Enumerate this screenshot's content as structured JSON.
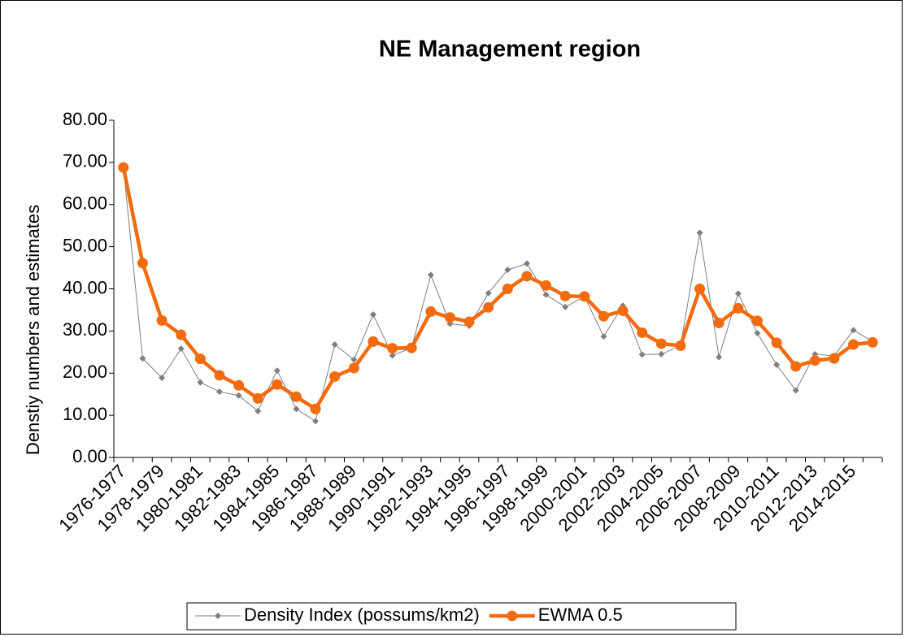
{
  "chart_data": {
    "type": "line",
    "title": "NE Management region",
    "y_label": "Denstiy numbers and estimates",
    "categories": [
      "1976-1977",
      null,
      "1978-1979",
      null,
      "1980-1981",
      null,
      "1982-1983",
      null,
      "1984-1985",
      null,
      "1986-1987",
      null,
      "1988-1989",
      null,
      "1990-1991",
      null,
      "1992-1993",
      null,
      "1994-1995",
      null,
      "1996-1997",
      null,
      "1998-1999",
      null,
      "2000-2001",
      null,
      "2002-2003",
      null,
      "2004-2005",
      null,
      "2006-2007",
      null,
      "2008-2009",
      null,
      "2010-2011",
      null,
      "2012-2013",
      null,
      "2014-2015",
      null
    ],
    "series": [
      {
        "name": "Density Index (possums/km2)",
        "color": "#7f7f7f",
        "values": [
          68.8,
          23.5,
          18.9,
          25.8,
          17.8,
          15.6,
          14.7,
          11.0,
          20.6,
          11.5,
          8.6,
          26.8,
          23.2,
          33.9,
          24.2,
          26.0,
          43.3,
          31.7,
          31.2,
          39.0,
          44.5,
          46.0,
          38.6,
          35.7,
          38.2,
          28.7,
          36.0,
          24.4,
          24.5,
          26.5,
          53.3,
          23.8,
          38.9,
          29.5,
          22.0,
          15.9,
          24.5,
          24.1,
          30.2,
          27.5
        ]
      },
      {
        "name": "EWMA 0.5",
        "color": "#f26b0f",
        "values": [
          68.8,
          46.1,
          32.5,
          29.1,
          23.4,
          19.5,
          17.1,
          14.0,
          17.3,
          14.4,
          11.5,
          19.2,
          21.2,
          27.5,
          25.9,
          26.0,
          34.6,
          33.2,
          32.2,
          35.6,
          40.0,
          43.0,
          40.8,
          38.3,
          38.2,
          33.5,
          34.8,
          29.6,
          27.0,
          26.5,
          40.0,
          31.9,
          35.4,
          32.4,
          27.2,
          21.6,
          23.0,
          23.5,
          26.8,
          27.3
        ]
      }
    ],
    "ylim": [
      0,
      80
    ],
    "yticks": [
      {
        "value": 0,
        "label": "0.00"
      },
      {
        "value": 10,
        "label": "10.00"
      },
      {
        "value": 20,
        "label": "20.00"
      },
      {
        "value": 30,
        "label": "30.00"
      },
      {
        "value": 40,
        "label": "40.00"
      },
      {
        "value": 50,
        "label": "50.00"
      },
      {
        "value": 60,
        "label": "60.00"
      },
      {
        "value": 70,
        "label": "70.00"
      },
      {
        "value": 80,
        "label": "80.00"
      }
    ],
    "grid": false,
    "legend": "bottom"
  }
}
